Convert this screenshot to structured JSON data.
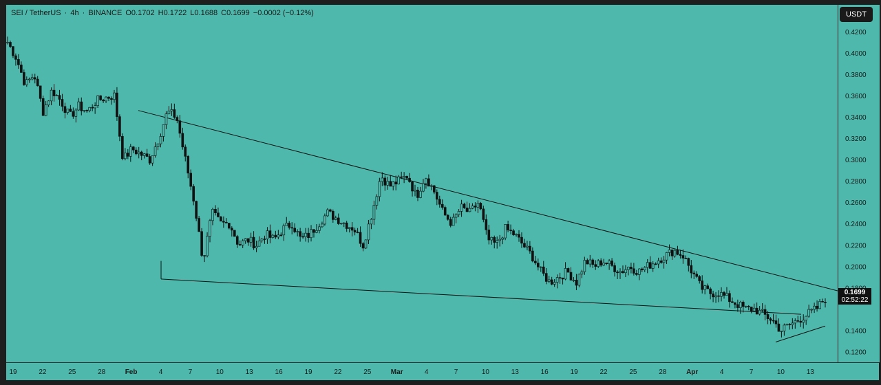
{
  "header": {
    "symbol": "SEI / TetherUS",
    "interval": "4h",
    "exchange": "BINANCE",
    "open": "O0.1702",
    "high": "H0.1722",
    "low": "L0.1688",
    "close": "C0.1699",
    "change": "−0.0002 (−0.12%)"
  },
  "currency_button": "USDT",
  "last_price": {
    "price": "0.1699",
    "countdown": "02:52:22"
  },
  "colors": {
    "background": "#4db8ab",
    "candle": "#111111",
    "frame": "#1e1e1e"
  },
  "chart_data": {
    "type": "candlestick",
    "interval": "4h",
    "x_ticks": [
      "19",
      "22",
      "25",
      "28",
      "Feb",
      "4",
      "7",
      "10",
      "13",
      "16",
      "19",
      "22",
      "25",
      "Mar",
      "4",
      "7",
      "10",
      "13",
      "16",
      "19",
      "22",
      "25",
      "28",
      "Apr",
      "4",
      "7",
      "10",
      "13"
    ],
    "y_ticks": [
      "0.4200",
      "0.4000",
      "0.3800",
      "0.3600",
      "0.3400",
      "0.3200",
      "0.3000",
      "0.2800",
      "0.2600",
      "0.2400",
      "0.2200",
      "0.2000",
      "0.1800",
      "0.1400",
      "0.1200"
    ],
    "y_range": [
      0.11,
      0.445
    ],
    "series": [
      {
        "values": [
          0.41,
          0.395,
          0.37,
          0.38,
          0.345,
          0.365,
          0.355,
          0.34,
          0.35,
          0.345,
          0.355,
          0.358,
          0.36,
          0.3,
          0.31,
          0.305,
          0.3,
          0.32,
          0.345,
          0.34,
          0.3,
          0.26,
          0.205,
          0.25,
          0.24,
          0.24,
          0.22,
          0.225,
          0.22,
          0.23,
          0.225,
          0.235,
          0.24,
          0.225,
          0.23,
          0.24,
          0.25,
          0.245,
          0.24,
          0.235,
          0.22,
          0.25,
          0.285,
          0.275,
          0.28,
          0.285,
          0.265,
          0.285,
          0.27,
          0.25,
          0.24,
          0.255,
          0.25,
          0.26,
          0.225,
          0.22,
          0.235,
          0.23,
          0.22,
          0.21,
          0.195,
          0.185,
          0.19,
          0.195,
          0.185,
          0.205,
          0.2,
          0.205,
          0.2,
          0.195,
          0.2,
          0.195,
          0.2,
          0.205,
          0.21,
          0.215,
          0.21,
          0.195,
          0.18,
          0.175,
          0.175,
          0.17,
          0.165,
          0.16,
          0.16,
          0.155,
          0.15,
          0.14,
          0.145,
          0.15,
          0.155,
          0.16,
          0.17
        ]
      }
    ],
    "trendlines": [
      {
        "name": "upper",
        "from": [
          "Feb 1",
          0.346
        ],
        "to": [
          "Apr 13",
          0.177
        ]
      },
      {
        "name": "lower",
        "from": [
          "Feb 3",
          0.188
        ],
        "to": [
          "Apr 9",
          0.155
        ]
      },
      {
        "name": "support",
        "from": [
          "Apr 7",
          0.129
        ],
        "to": [
          "Apr 12",
          0.144
        ]
      }
    ]
  }
}
